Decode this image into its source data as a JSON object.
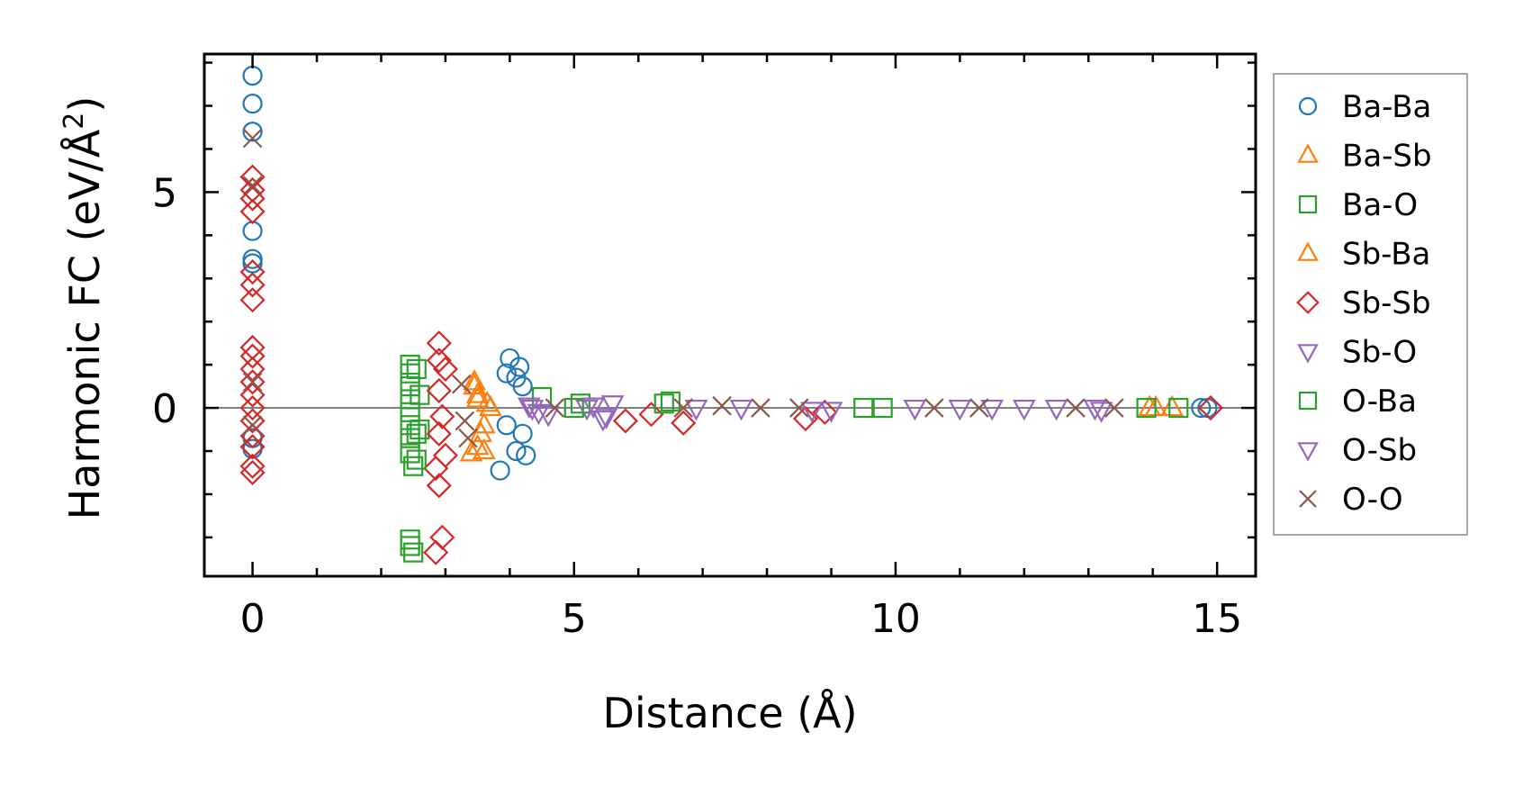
{
  "chart_data": {
    "type": "scatter",
    "xlabel": "Distance (Å)",
    "ylabel": {
      "main": "Harmonic FC (eV/Å",
      "sup": "2",
      "end": ")"
    },
    "xlim": [
      -0.75,
      15.6
    ],
    "ylim": [
      -3.9,
      8.2
    ],
    "x_ticks": [
      0,
      5,
      10,
      15
    ],
    "y_ticks": [
      0,
      5
    ],
    "reference_line": {
      "y": 0,
      "color": "#808080"
    },
    "grid": false,
    "legend_placement": "outside-right",
    "series": [
      {
        "name": "Ba-Ba",
        "marker": "circle",
        "color": "#1f77b4",
        "points": [
          [
            0,
            7.7
          ],
          [
            0,
            7.05
          ],
          [
            0,
            6.4
          ],
          [
            0,
            4.1
          ],
          [
            0,
            3.45
          ],
          [
            0,
            3.35
          ],
          [
            0,
            -0.7
          ],
          [
            0,
            -0.95
          ],
          [
            3.85,
            -1.45
          ],
          [
            3.95,
            0.8
          ],
          [
            4.0,
            1.15
          ],
          [
            4.1,
            0.7
          ],
          [
            4.15,
            0.95
          ],
          [
            4.2,
            -0.6
          ],
          [
            4.25,
            -1.1
          ],
          [
            4.1,
            -1.0
          ],
          [
            3.95,
            -0.4
          ],
          [
            4.2,
            0.5
          ],
          [
            14.75,
            0.0
          ],
          [
            14.85,
            0.0
          ]
        ]
      },
      {
        "name": "Ba-Sb",
        "marker": "triangle-up",
        "color": "#ff7f0e",
        "points": [
          [
            3.45,
            0.5
          ],
          [
            3.5,
            0.2
          ],
          [
            3.55,
            -0.6
          ],
          [
            3.6,
            -1.0
          ],
          [
            3.4,
            -1.05
          ],
          [
            3.7,
            0.0
          ],
          [
            13.95,
            0.0
          ],
          [
            14.3,
            0.0
          ]
        ]
      },
      {
        "name": "Ba-O",
        "marker": "square",
        "color": "#2ca02c",
        "points": [
          [
            2.45,
            1.0
          ],
          [
            2.45,
            0.8
          ],
          [
            2.45,
            0.5
          ],
          [
            2.45,
            0.2
          ],
          [
            2.45,
            -0.1
          ],
          [
            2.45,
            -0.4
          ],
          [
            2.45,
            -0.7
          ],
          [
            2.45,
            -1.05
          ],
          [
            2.5,
            -1.35
          ],
          [
            2.45,
            -3.05
          ],
          [
            2.45,
            -3.2
          ],
          [
            2.5,
            -3.35
          ],
          [
            2.6,
            0.3
          ],
          [
            2.6,
            -0.5
          ],
          [
            4.5,
            0.25
          ],
          [
            5.1,
            0.1
          ],
          [
            6.5,
            0.15
          ],
          [
            9.5,
            0.0
          ],
          [
            14.4,
            0.0
          ]
        ]
      },
      {
        "name": "Sb-Ba",
        "marker": "triangle-up",
        "color": "#ff7f0e",
        "points": [
          [
            3.45,
            0.6
          ],
          [
            3.5,
            0.3
          ],
          [
            3.6,
            -0.4
          ],
          [
            3.5,
            -0.9
          ],
          [
            3.65,
            0.1
          ],
          [
            14.05,
            0.0
          ]
        ]
      },
      {
        "name": "Sb-Sb",
        "marker": "diamond",
        "color": "#d62728",
        "points": [
          [
            0,
            5.35
          ],
          [
            0,
            5.05
          ],
          [
            0,
            4.85
          ],
          [
            0,
            4.55
          ],
          [
            0,
            3.15
          ],
          [
            0,
            2.85
          ],
          [
            0,
            2.5
          ],
          [
            0,
            1.4
          ],
          [
            0,
            1.2
          ],
          [
            0,
            0.9
          ],
          [
            0,
            0.6
          ],
          [
            0,
            0.3
          ],
          [
            0,
            0.0
          ],
          [
            0,
            -0.3
          ],
          [
            0,
            -0.65
          ],
          [
            0,
            -0.9
          ],
          [
            0,
            -1.35
          ],
          [
            0,
            -1.5
          ],
          [
            2.9,
            1.5
          ],
          [
            2.9,
            1.1
          ],
          [
            3.0,
            0.9
          ],
          [
            2.9,
            0.4
          ],
          [
            2.95,
            -0.2
          ],
          [
            2.9,
            -0.6
          ],
          [
            3.0,
            -1.1
          ],
          [
            2.85,
            -1.4
          ],
          [
            2.9,
            -1.8
          ],
          [
            2.95,
            -3.0
          ],
          [
            2.85,
            -3.35
          ],
          [
            5.8,
            -0.3
          ],
          [
            6.2,
            -0.15
          ],
          [
            6.7,
            -0.35
          ],
          [
            8.6,
            -0.25
          ],
          [
            8.9,
            -0.1
          ],
          [
            14.9,
            0.0
          ]
        ]
      },
      {
        "name": "Sb-O",
        "marker": "triangle-down",
        "color": "#9467bd",
        "points": [
          [
            4.3,
            0.05
          ],
          [
            4.45,
            -0.1
          ],
          [
            5.2,
            0.0
          ],
          [
            5.5,
            -0.2
          ],
          [
            5.6,
            0.1
          ],
          [
            7.6,
            0.0
          ],
          [
            8.7,
            -0.05
          ],
          [
            11.0,
            0.0
          ],
          [
            12.5,
            0.0
          ],
          [
            13.1,
            0.0
          ]
        ]
      },
      {
        "name": "O-Ba",
        "marker": "square",
        "color": "#2ca02c",
        "points": [
          [
            2.55,
            0.9
          ],
          [
            2.55,
            -0.6
          ],
          [
            2.55,
            -1.2
          ],
          [
            5.0,
            0.0
          ],
          [
            6.4,
            0.1
          ],
          [
            9.8,
            0.0
          ],
          [
            13.9,
            0.0
          ]
        ]
      },
      {
        "name": "O-Sb",
        "marker": "triangle-down",
        "color": "#9467bd",
        "points": [
          [
            4.35,
            0.0
          ],
          [
            4.6,
            -0.15
          ],
          [
            5.3,
            0.05
          ],
          [
            5.45,
            -0.25
          ],
          [
            6.9,
            0.0
          ],
          [
            9.0,
            -0.05
          ],
          [
            10.3,
            0.0
          ],
          [
            11.5,
            0.0
          ],
          [
            12.0,
            0.0
          ],
          [
            13.2,
            -0.05
          ]
        ]
      },
      {
        "name": "O-O",
        "marker": "x",
        "color": "#8c564b",
        "points": [
          [
            0,
            6.25
          ],
          [
            0,
            5.15
          ],
          [
            0,
            0.6
          ],
          [
            0,
            -0.4
          ],
          [
            3.25,
            0.55
          ],
          [
            3.3,
            -0.3
          ],
          [
            3.35,
            -0.7
          ],
          [
            4.7,
            0.0
          ],
          [
            6.7,
            0.0
          ],
          [
            7.3,
            0.05
          ],
          [
            7.9,
            0.0
          ],
          [
            8.5,
            0.0
          ],
          [
            10.6,
            0.0
          ],
          [
            11.3,
            0.0
          ],
          [
            12.8,
            0.0
          ],
          [
            13.4,
            0.0
          ]
        ]
      }
    ]
  }
}
